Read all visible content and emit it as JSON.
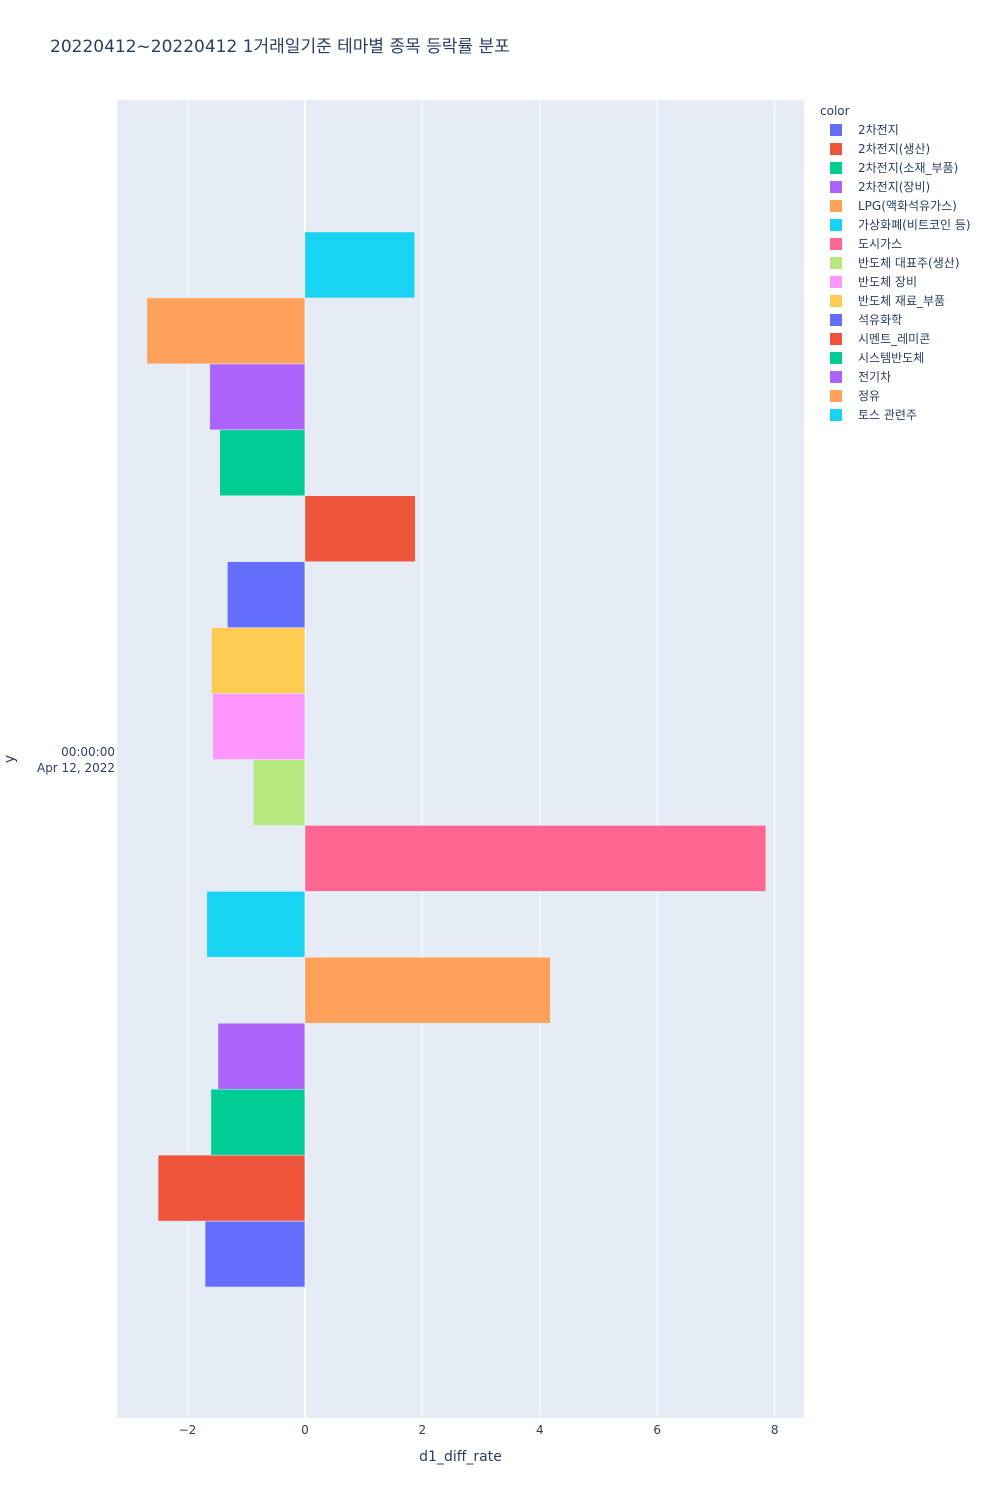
{
  "chart_data": {
    "type": "bar",
    "orientation": "horizontal",
    "barmode": "group",
    "title": "20220412~20220412 1거래일기준 테마별 종목 등락률 분포",
    "xlabel": "d1_diff_rate",
    "ylabel": "y",
    "y_category_lines": [
      "00:00:00",
      "Apr 12, 2022"
    ],
    "xlim": [
      -3.2,
      8.5
    ],
    "xticks": [
      -2,
      0,
      2,
      4,
      6,
      8
    ],
    "xtick_labels": [
      "−2",
      "0",
      "2",
      "4",
      "6",
      "8"
    ],
    "grid": true,
    "legend_title": "color",
    "legend_position": "top-right",
    "series": [
      {
        "name": "2차전지",
        "color": "#636efa",
        "value": -1.7
      },
      {
        "name": "2차전지(생산)",
        "color": "#EF553B",
        "value": -2.5
      },
      {
        "name": "2차전지(소재_부품)",
        "color": "#00cc96",
        "value": -1.6
      },
      {
        "name": "2차전지(장비)",
        "color": "#ab63fa",
        "value": -1.48
      },
      {
        "name": "LPG(액화석유가스)",
        "color": "#FFA15A",
        "value": 4.18
      },
      {
        "name": "가상화폐(비트코인 등)",
        "color": "#19d3f3",
        "value": -1.67
      },
      {
        "name": "도시가스",
        "color": "#FF6692",
        "value": 7.85
      },
      {
        "name": "반도체 대표주(생산)",
        "color": "#B6E880",
        "value": -0.88
      },
      {
        "name": "반도체 장비",
        "color": "#FF97FF",
        "value": -1.57
      },
      {
        "name": "반도체 재료_부품",
        "color": "#FECB52",
        "value": -1.59
      },
      {
        "name": "석유화학",
        "color": "#636efa",
        "value": -1.32
      },
      {
        "name": "시멘트_레미콘",
        "color": "#EF553B",
        "value": 1.88
      },
      {
        "name": "시스템반도체",
        "color": "#00cc96",
        "value": -1.45
      },
      {
        "name": "전기차",
        "color": "#ab63fa",
        "value": -1.62
      },
      {
        "name": "정유",
        "color": "#FFA15A",
        "value": -2.69
      },
      {
        "name": "토스 관련주",
        "color": "#19d3f3",
        "value": 1.87
      }
    ]
  }
}
